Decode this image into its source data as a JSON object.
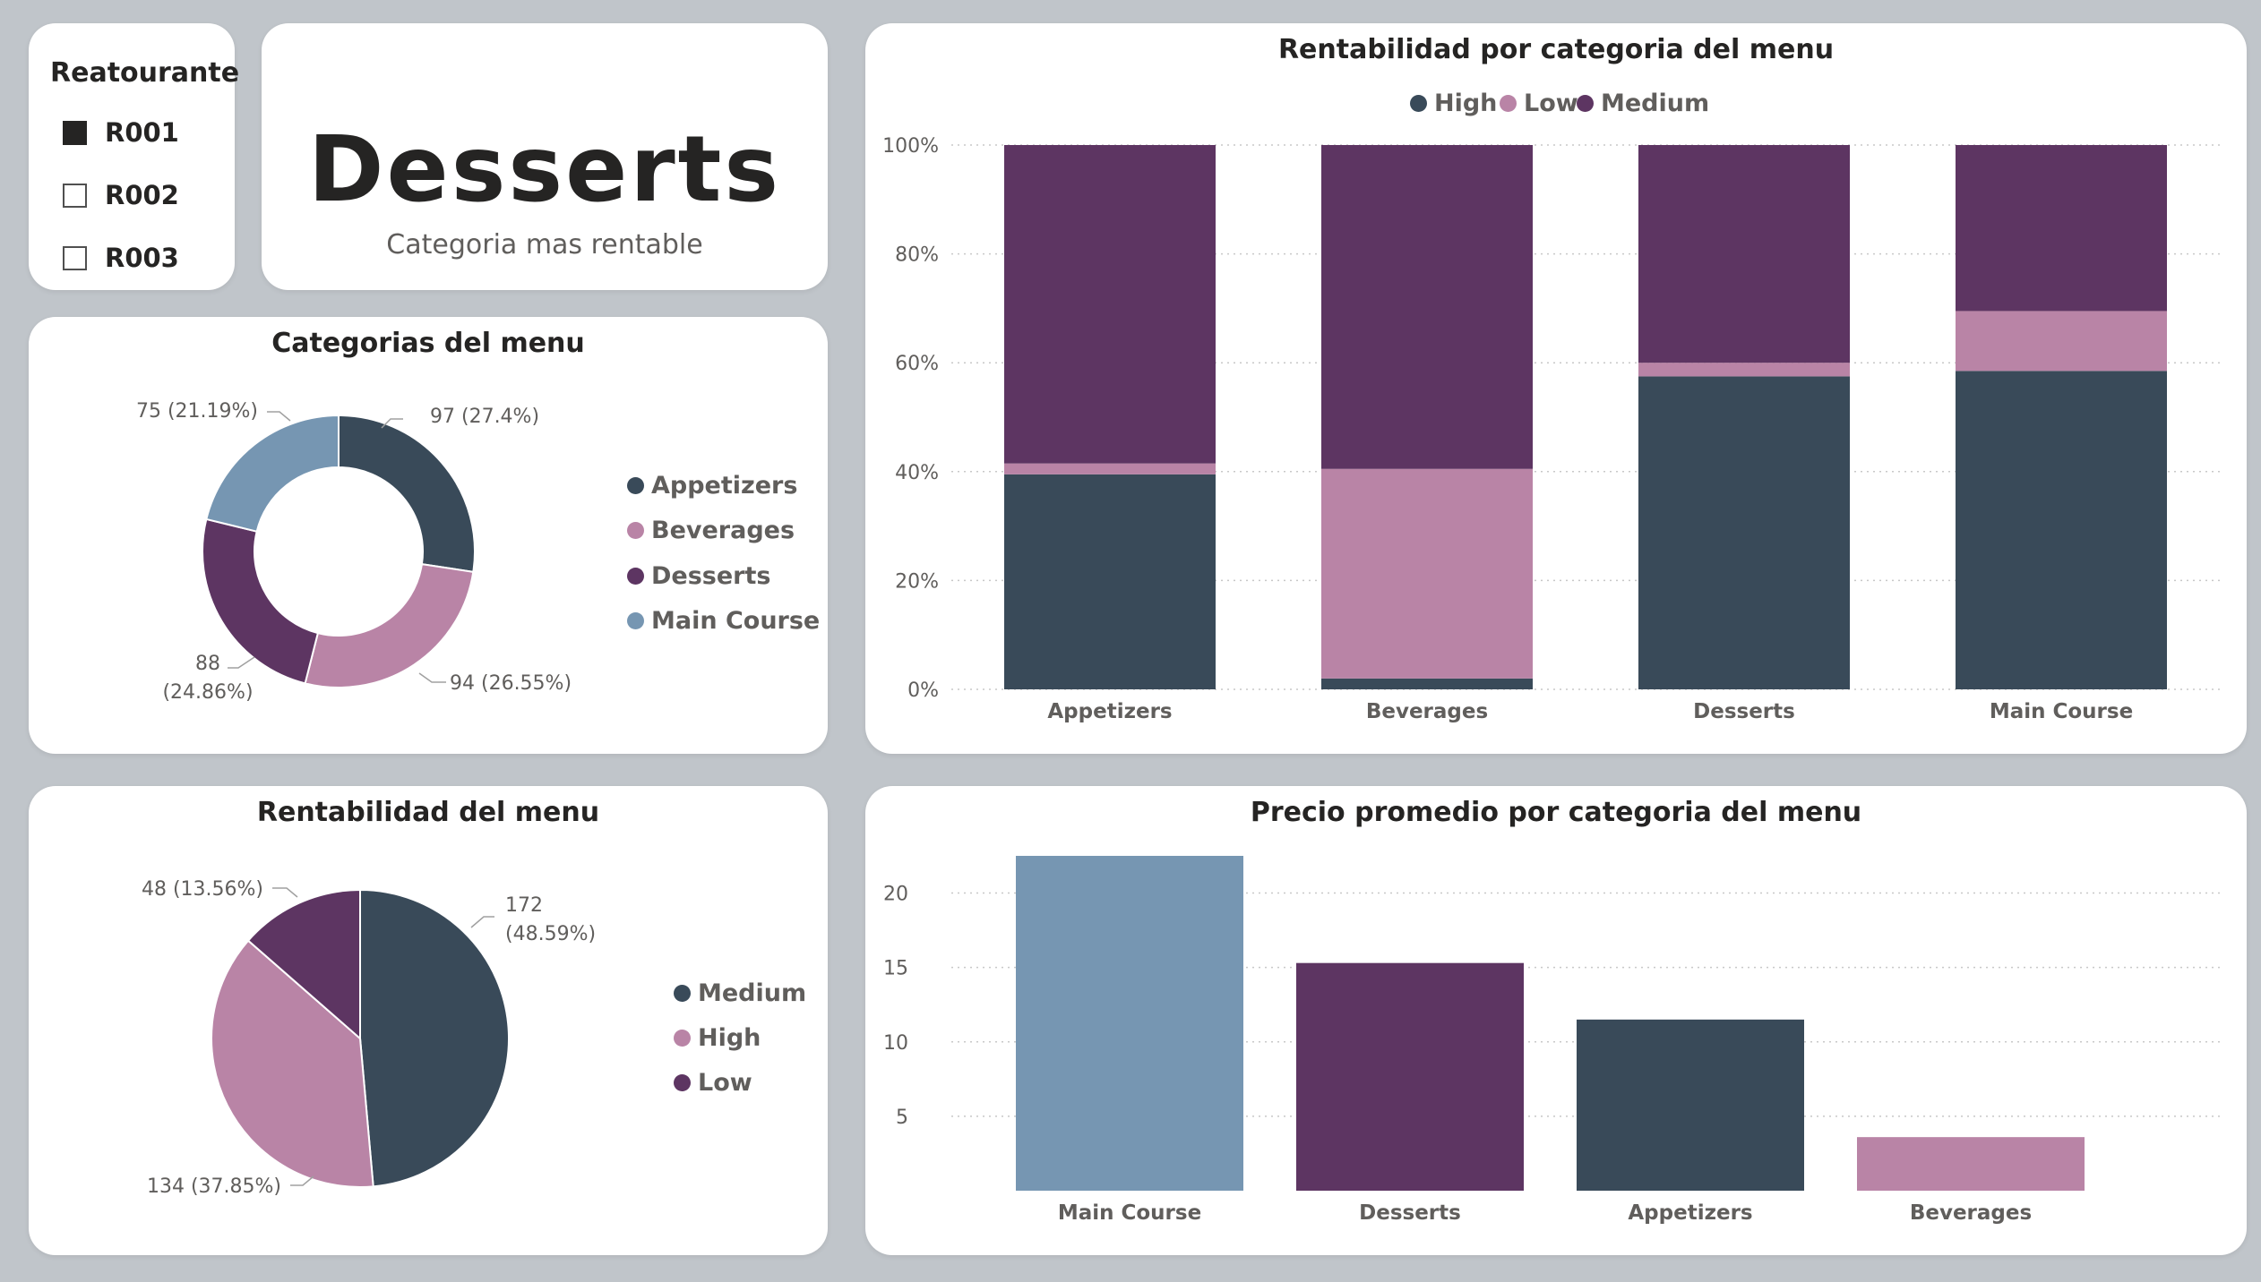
{
  "colors": {
    "dark": "#394a59",
    "pink": "#b984a6",
    "purple": "#5d3562",
    "blue": "#7696b2"
  },
  "slicer": {
    "title": "Reatourante",
    "options": [
      {
        "label": "R001",
        "checked": true
      },
      {
        "label": "R002",
        "checked": false
      },
      {
        "label": "R003",
        "checked": false
      }
    ]
  },
  "kpi": {
    "value": "Desserts",
    "label": "Categoria mas rentable"
  },
  "chart_data": [
    {
      "type": "pie",
      "variant": "donut",
      "title": "Categorias del menu",
      "categories": [
        "Appetizers",
        "Beverages",
        "Desserts",
        "Main Course"
      ],
      "values": [
        97,
        94,
        88,
        75
      ],
      "labels": [
        "97 (27.4%)",
        "94 (26.55%)",
        "88 (24.86%)",
        "75 (21.19%)"
      ],
      "colors": [
        "#394a59",
        "#b984a6",
        "#5d3562",
        "#7696b2"
      ],
      "legend": "right"
    },
    {
      "type": "bar",
      "variant": "100% stacked",
      "title": "Rentabilidad por categoria del menu",
      "categories": [
        "Appetizers",
        "Beverages",
        "Desserts",
        "Main Course"
      ],
      "series": [
        {
          "name": "High",
          "values": [
            39.5,
            2,
            57.5,
            58.5
          ],
          "color": "#394a59"
        },
        {
          "name": "Low",
          "values": [
            2,
            38.5,
            2.5,
            11
          ],
          "color": "#b984a6"
        },
        {
          "name": "Medium",
          "values": [
            58.5,
            59.5,
            40,
            30.5
          ],
          "color": "#5d3562"
        }
      ],
      "yticks": [
        "0%",
        "20%",
        "40%",
        "60%",
        "80%",
        "100%"
      ],
      "ylim": [
        0,
        100
      ],
      "grid": true,
      "legend": "top"
    },
    {
      "type": "pie",
      "title": "Rentabilidad del menu",
      "categories": [
        "Medium",
        "High",
        "Low"
      ],
      "values": [
        172,
        134,
        48
      ],
      "labels": [
        "172 (48.59%)",
        "134 (37.85%)",
        "48 (13.56%)"
      ],
      "colors": [
        "#394a59",
        "#b984a6",
        "#5d3562"
      ],
      "legend": "right"
    },
    {
      "type": "bar",
      "title": "Precio promedio por categoria del menu",
      "categories": [
        "Main Course",
        "Desserts",
        "Appetizers",
        "Beverages"
      ],
      "values": [
        22.5,
        15.3,
        11.5,
        3.6
      ],
      "colors": [
        "#7696b2",
        "#5d3562",
        "#394a59",
        "#b984a6"
      ],
      "yticks": [
        "5",
        "10",
        "15",
        "20"
      ],
      "ylim": [
        0,
        22.5
      ],
      "grid": true
    }
  ]
}
